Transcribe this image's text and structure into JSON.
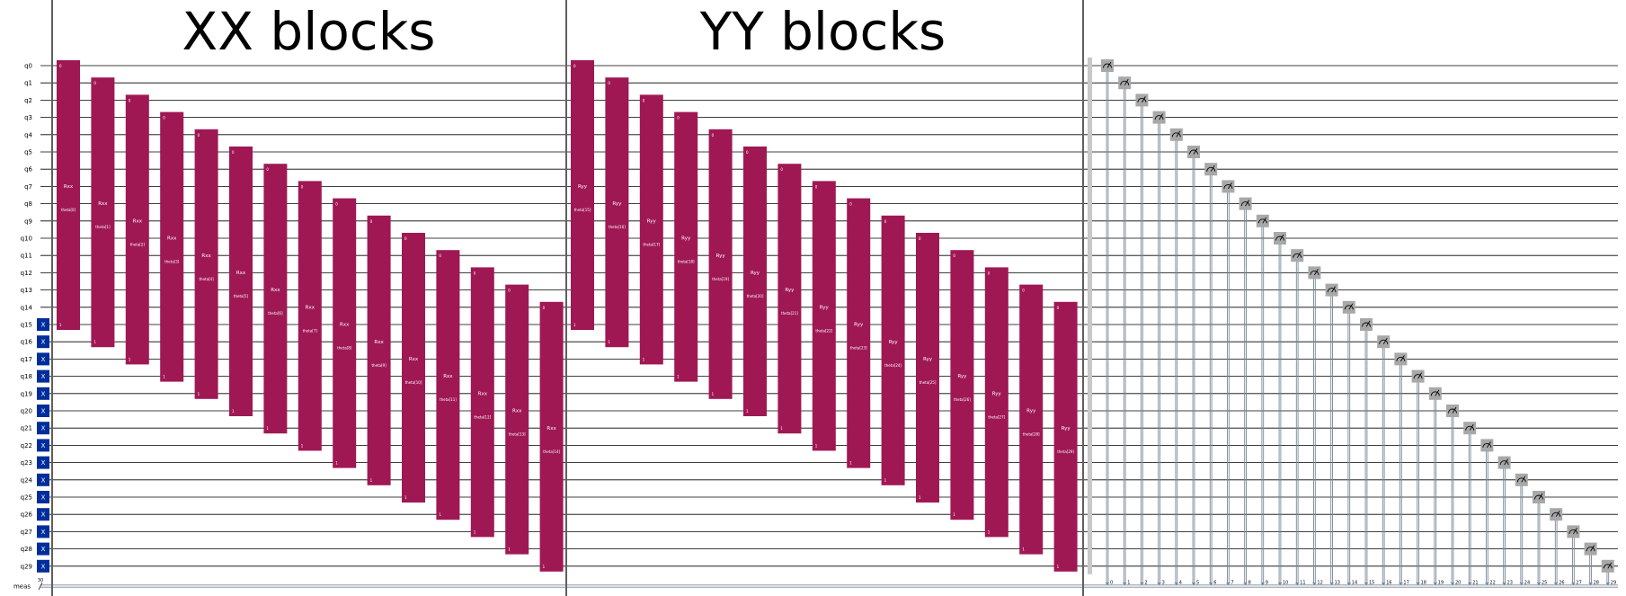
{
  "section_titles": [
    "XX blocks",
    "YY blocks"
  ],
  "qubit_labels": [
    "q0",
    "q1",
    "q2",
    "q3",
    "q4",
    "q5",
    "q6",
    "q7",
    "q8",
    "q9",
    "q10",
    "q11",
    "q12",
    "q13",
    "q14",
    "q15",
    "q16",
    "q17",
    "q18",
    "q19",
    "q20",
    "q21",
    "q22",
    "q23",
    "q24",
    "q25",
    "q26",
    "q27",
    "q28",
    "q29"
  ],
  "classical_register": {
    "label": "meas",
    "size_label": "30"
  },
  "x_gate_label": "X",
  "x_gate_qubits": [
    15,
    16,
    17,
    18,
    19,
    20,
    21,
    22,
    23,
    24,
    25,
    26,
    27,
    28,
    29
  ],
  "blocks": [
    {
      "gate_label": "Rxx",
      "pin_top": "0",
      "pin_bottom": "1",
      "params": [
        "theta[0]",
        "theta[1]",
        "theta[2]",
        "theta[3]",
        "theta[4]",
        "theta[5]",
        "theta[6]",
        "theta[7]",
        "theta[8]",
        "theta[9]",
        "theta[10]",
        "theta[11]",
        "theta[12]",
        "theta[13]",
        "theta[14]"
      ]
    },
    {
      "gate_label": "Ryy",
      "pin_top": "0",
      "pin_bottom": "1",
      "params": [
        "theta[15]",
        "theta[16]",
        "theta[17]",
        "theta[18]",
        "theta[19]",
        "theta[20]",
        "theta[21]",
        "theta[22]",
        "theta[23]",
        "theta[24]",
        "theta[25]",
        "theta[26]",
        "theta[27]",
        "theta[28]",
        "theta[29]"
      ]
    }
  ],
  "measure_indices": [
    "0",
    "1",
    "2",
    "3",
    "4",
    "5",
    "6",
    "7",
    "8",
    "9",
    "10",
    "11",
    "12",
    "13",
    "14",
    "15",
    "16",
    "17",
    "18",
    "19",
    "20",
    "21",
    "22",
    "23",
    "24",
    "25",
    "26",
    "27",
    "28",
    "29"
  ],
  "colors": {
    "wire": "#000000",
    "divider": "#5f5f5f",
    "rotation_gate": "#9f1853",
    "x_gate": "#002d9c",
    "measure_box": "#a8a8a8",
    "measure_line": "#778899",
    "barrier": "#c8c8c8",
    "text": "#000000"
  }
}
